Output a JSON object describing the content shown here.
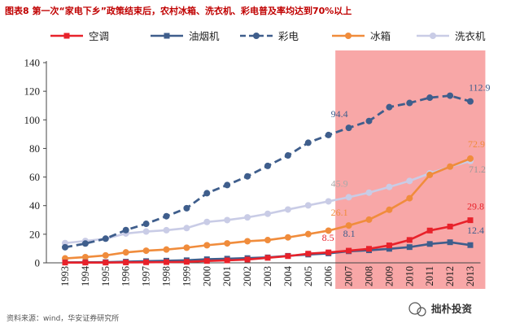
{
  "chart_data": {
    "type": "line",
    "title": "图表8 第一次“家电下乡”政策结束后，农村冰箱、洗衣机、彩电普及率均达到70%以上",
    "categories": [
      "1993",
      "1994",
      "1995",
      "1996",
      "1997",
      "1998",
      "1999",
      "2000",
      "2001",
      "2002",
      "2003",
      "2004",
      "2005",
      "2006",
      "2007",
      "2008",
      "2009",
      "2010",
      "2011",
      "2012",
      "2013"
    ],
    "ylim": [
      0,
      140
    ],
    "yticks": [
      "0",
      "20",
      "40",
      "60",
      "80",
      "100",
      "120",
      "140"
    ],
    "highlight_range": [
      "2007",
      "2013"
    ],
    "legend_position": "top",
    "series": [
      {
        "name": "空调",
        "color": "#e8222b",
        "style": "solid",
        "marker": "square",
        "values": [
          0.2,
          0.2,
          0.2,
          0.3,
          0.4,
          0.5,
          0.7,
          1.3,
          1.7,
          2.3,
          3.5,
          4.7,
          6.4,
          7.3,
          8.5,
          9.8,
          12.2,
          16.0,
          22.6,
          25.4,
          29.8
        ]
      },
      {
        "name": "油烟机",
        "color": "#3f5e8c",
        "style": "solid",
        "marker": "square",
        "values": [
          0.3,
          0.4,
          0.5,
          0.8,
          1.2,
          1.5,
          1.8,
          2.5,
          2.9,
          3.3,
          3.8,
          4.9,
          5.8,
          6.6,
          8.1,
          8.8,
          9.8,
          11.0,
          13.2,
          14.4,
          12.4
        ]
      },
      {
        "name": "彩电",
        "color": "#3f5e8c",
        "style": "dashed",
        "marker": "circle",
        "values": [
          10.9,
          13.5,
          16.9,
          22.9,
          27.3,
          32.6,
          38.2,
          48.7,
          54.4,
          60.5,
          67.8,
          75.1,
          84.0,
          89.4,
          94.4,
          99.2,
          108.9,
          111.8,
          115.5,
          116.9,
          112.9
        ]
      },
      {
        "name": "冰箱",
        "color": "#f08c3c",
        "style": "solid",
        "marker": "circle",
        "values": [
          3.1,
          4.0,
          5.2,
          7.3,
          8.5,
          9.3,
          10.6,
          12.3,
          13.6,
          15.1,
          15.9,
          17.8,
          20.1,
          22.5,
          26.1,
          30.2,
          37.1,
          45.2,
          61.5,
          67.3,
          72.9
        ]
      },
      {
        "name": "洗衣机",
        "color": "#c9cce6",
        "style": "solid",
        "marker": "circle",
        "values": [
          13.8,
          15.3,
          16.9,
          20.5,
          21.9,
          22.8,
          24.3,
          28.6,
          29.9,
          31.8,
          34.3,
          37.3,
          40.2,
          43.0,
          45.9,
          49.1,
          53.1,
          57.3,
          62.6,
          67.2,
          71.2
        ]
      }
    ],
    "annotations": [
      {
        "text": "112.9",
        "color": "#3f5e8c",
        "series": "彩电",
        "at": "2013"
      },
      {
        "text": "94.4",
        "color": "#3f5e8c",
        "series": "彩电",
        "at": "2007"
      },
      {
        "text": "72.9",
        "color": "#f08c3c",
        "series": "冰箱",
        "at": "2013"
      },
      {
        "text": "71.2",
        "color": "#999999",
        "series": "洗衣机",
        "at": "2013"
      },
      {
        "text": "45.9",
        "color": "#aaaaaa",
        "series": "洗衣机",
        "at": "2007"
      },
      {
        "text": "26.1",
        "color": "#f08c3c",
        "series": "冰箱",
        "at": "2007"
      },
      {
        "text": "29.8",
        "color": "#e8222b",
        "series": "空调",
        "at": "2013"
      },
      {
        "text": "12.4",
        "color": "#3f5e8c",
        "series": "油烟机",
        "at": "2013"
      },
      {
        "text": "8.5",
        "color": "#e8222b",
        "series": "空调",
        "at": "2007"
      },
      {
        "text": "8.1",
        "color": "#3f5e8c",
        "series": "油烟机",
        "at": "2007"
      }
    ]
  },
  "source": "资料来源：wind，华安证券研究所",
  "watermark": "拙朴投资"
}
